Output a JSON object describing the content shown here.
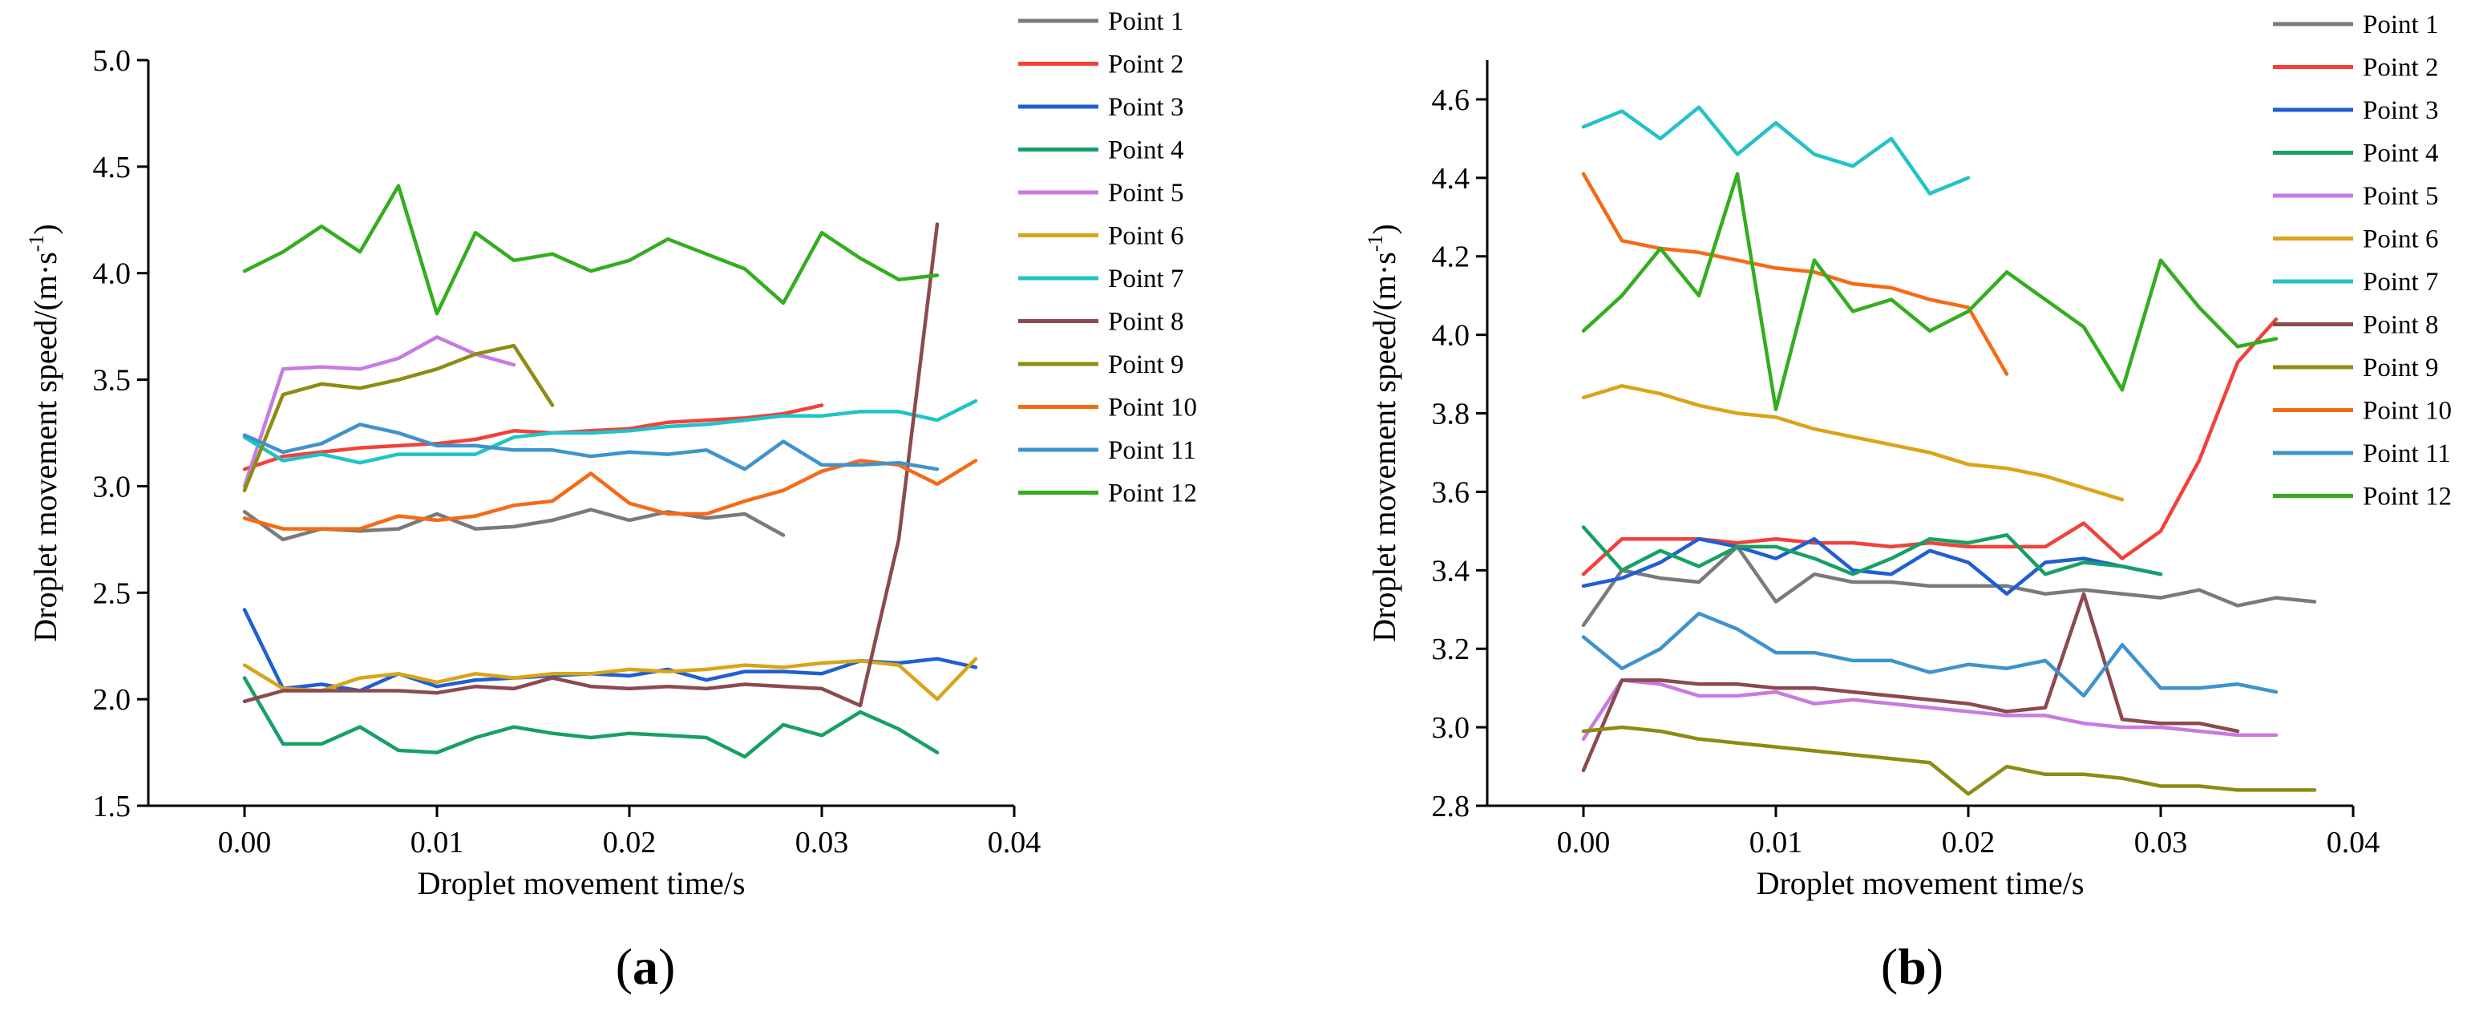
{
  "chart_data": [
    {
      "panel_label": "(a)",
      "type": "line",
      "xlabel": "Droplet movement time/s",
      "ylabel_main": "Droplet movement speed/(m·s",
      "ylabel_sup": "-1",
      "ylabel_close": ")",
      "xlim": [
        -0.005,
        0.04
      ],
      "ylim": [
        1.5,
        5.0
      ],
      "xticks": [
        "0.00",
        "0.01",
        "0.02",
        "0.03",
        "0.04"
      ],
      "yticks": [
        "1.5",
        "2.0",
        "2.5",
        "3.0",
        "3.5",
        "4.0",
        "4.5",
        "5.0"
      ],
      "series": [
        {
          "name": "Point 1",
          "color": "#7a7a7a",
          "x": [
            0,
            0.002,
            0.004,
            0.006,
            0.008,
            0.01,
            0.012,
            0.014,
            0.016,
            0.018,
            0.02,
            0.022,
            0.024,
            0.026,
            0.028
          ],
          "y": [
            2.88,
            2.75,
            2.8,
            2.79,
            2.8,
            2.87,
            2.8,
            2.81,
            2.84,
            2.89,
            2.84,
            2.88,
            2.85,
            2.87,
            2.77
          ]
        },
        {
          "name": "Point 2",
          "color": "#f0423a",
          "x": [
            0,
            0.002,
            0.004,
            0.006,
            0.008,
            0.01,
            0.012,
            0.014,
            0.016,
            0.018,
            0.02,
            0.022,
            0.024,
            0.026,
            0.028,
            0.03
          ],
          "y": [
            3.08,
            3.14,
            3.16,
            3.18,
            3.19,
            3.2,
            3.22,
            3.26,
            3.25,
            3.26,
            3.27,
            3.3,
            3.31,
            3.32,
            3.34,
            3.38
          ]
        },
        {
          "name": "Point 3",
          "color": "#1f5fd1",
          "x": [
            0,
            0.002,
            0.004,
            0.006,
            0.008,
            0.01,
            0.012,
            0.014,
            0.016,
            0.018,
            0.02,
            0.022,
            0.024,
            0.026,
            0.028,
            0.03,
            0.032,
            0.034,
            0.036,
            0.038
          ],
          "y": [
            2.42,
            2.05,
            2.07,
            2.04,
            2.12,
            2.06,
            2.09,
            2.1,
            2.11,
            2.12,
            2.11,
            2.14,
            2.09,
            2.13,
            2.13,
            2.12,
            2.18,
            2.17,
            2.19,
            2.15
          ]
        },
        {
          "name": "Point 4",
          "color": "#16a066",
          "x": [
            0,
            0.002,
            0.004,
            0.006,
            0.008,
            0.01,
            0.012,
            0.014,
            0.016,
            0.018,
            0.02,
            0.022,
            0.024,
            0.026,
            0.028,
            0.03,
            0.032,
            0.034,
            0.036
          ],
          "y": [
            2.1,
            1.79,
            1.79,
            1.87,
            1.76,
            1.75,
            1.82,
            1.87,
            1.84,
            1.82,
            1.84,
            1.83,
            1.82,
            1.73,
            1.88,
            1.83,
            1.94,
            1.86,
            1.75
          ]
        },
        {
          "name": "Point 5",
          "color": "#c77be0",
          "x": [
            0,
            0.002,
            0.004,
            0.006,
            0.008,
            0.01,
            0.012,
            0.014
          ],
          "y": [
            3.0,
            3.55,
            3.56,
            3.55,
            3.6,
            3.7,
            3.62,
            3.57
          ]
        },
        {
          "name": "Point 6",
          "color": "#d9a418",
          "x": [
            0,
            0.002,
            0.004,
            0.006,
            0.008,
            0.01,
            0.012,
            0.014,
            0.016,
            0.018,
            0.02,
            0.022,
            0.024,
            0.026,
            0.028,
            0.03,
            0.032,
            0.034,
            0.036,
            0.038
          ],
          "y": [
            2.16,
            2.05,
            2.04,
            2.1,
            2.12,
            2.08,
            2.12,
            2.1,
            2.12,
            2.12,
            2.14,
            2.13,
            2.14,
            2.16,
            2.15,
            2.17,
            2.18,
            2.16,
            2.0,
            2.19
          ]
        },
        {
          "name": "Point 7",
          "color": "#20c3c8",
          "x": [
            0,
            0.002,
            0.004,
            0.006,
            0.008,
            0.01,
            0.012,
            0.014,
            0.016,
            0.018,
            0.02,
            0.022,
            0.024,
            0.026,
            0.028,
            0.03,
            0.032,
            0.034,
            0.036,
            0.038
          ],
          "y": [
            3.23,
            3.12,
            3.15,
            3.11,
            3.15,
            3.15,
            3.15,
            3.23,
            3.25,
            3.25,
            3.26,
            3.28,
            3.29,
            3.31,
            3.33,
            3.33,
            3.35,
            3.35,
            3.31,
            3.4
          ]
        },
        {
          "name": "Point 8",
          "color": "#8b4a4f",
          "x": [
            0,
            0.002,
            0.004,
            0.006,
            0.008,
            0.01,
            0.012,
            0.014,
            0.016,
            0.018,
            0.02,
            0.022,
            0.024,
            0.026,
            0.028,
            0.03,
            0.032,
            0.034,
            0.036
          ],
          "y": [
            1.99,
            2.04,
            2.04,
            2.04,
            2.04,
            2.03,
            2.06,
            2.05,
            2.1,
            2.06,
            2.05,
            2.06,
            2.05,
            2.07,
            2.06,
            2.05,
            1.97,
            2.75,
            4.23
          ]
        },
        {
          "name": "Point 9",
          "color": "#8c8c12",
          "x": [
            0,
            0.002,
            0.004,
            0.006,
            0.008,
            0.01,
            0.012,
            0.014,
            0.016
          ],
          "y": [
            2.98,
            3.43,
            3.48,
            3.46,
            3.5,
            3.55,
            3.62,
            3.66,
            3.38
          ]
        },
        {
          "name": "Point 10",
          "color": "#f56a16",
          "x": [
            0,
            0.002,
            0.004,
            0.006,
            0.008,
            0.01,
            0.012,
            0.014,
            0.016,
            0.018,
            0.02,
            0.022,
            0.024,
            0.026,
            0.028,
            0.03,
            0.032,
            0.034,
            0.036,
            0.038
          ],
          "y": [
            2.85,
            2.8,
            2.8,
            2.8,
            2.86,
            2.84,
            2.86,
            2.91,
            2.93,
            3.06,
            2.92,
            2.87,
            2.87,
            2.93,
            2.98,
            3.07,
            3.12,
            3.1,
            3.01,
            3.12
          ]
        },
        {
          "name": "Point 11",
          "color": "#3f93cc",
          "x": [
            0,
            0.002,
            0.004,
            0.006,
            0.008,
            0.01,
            0.012,
            0.014,
            0.016,
            0.018,
            0.02,
            0.022,
            0.024,
            0.026,
            0.028,
            0.03,
            0.032,
            0.034,
            0.036
          ],
          "y": [
            3.24,
            3.16,
            3.2,
            3.29,
            3.25,
            3.19,
            3.19,
            3.17,
            3.17,
            3.14,
            3.16,
            3.15,
            3.17,
            3.08,
            3.21,
            3.1,
            3.1,
            3.11,
            3.08
          ]
        },
        {
          "name": "Point 12",
          "color": "#34ad1e",
          "x": [
            0,
            0.002,
            0.004,
            0.006,
            0.008,
            0.01,
            0.012,
            0.014,
            0.016,
            0.018,
            0.02,
            0.022,
            0.024,
            0.026,
            0.028,
            0.03,
            0.032,
            0.034,
            0.036
          ],
          "y": [
            4.01,
            4.1,
            4.22,
            4.1,
            4.41,
            3.81,
            4.19,
            4.06,
            4.09,
            4.01,
            4.06,
            4.16,
            4.09,
            4.02,
            3.86,
            4.19,
            4.07,
            3.97,
            3.99
          ]
        }
      ]
    },
    {
      "panel_label": "(b)",
      "type": "line",
      "xlabel": "Droplet movement time/s",
      "ylabel_main": "Droplet movement speed/(m·s",
      "ylabel_sup": "-1",
      "ylabel_close": ")",
      "xlim": [
        -0.005,
        0.04
      ],
      "ylim": [
        2.8,
        4.7
      ],
      "xticks": [
        "0.00",
        "0.01",
        "0.02",
        "0.03",
        "0.04"
      ],
      "yticks": [
        "2.8",
        "3.0",
        "3.2",
        "3.4",
        "3.6",
        "3.8",
        "4.0",
        "4.2",
        "4.4",
        "4.6"
      ],
      "series": [
        {
          "name": "Point 1",
          "color": "#7a7a7a",
          "x": [
            0,
            0.002,
            0.004,
            0.006,
            0.008,
            0.01,
            0.012,
            0.014,
            0.016,
            0.018,
            0.02,
            0.022,
            0.024,
            0.026,
            0.028,
            0.03,
            0.032,
            0.034,
            0.036,
            0.038
          ],
          "y": [
            3.26,
            3.4,
            3.38,
            3.37,
            3.46,
            3.32,
            3.39,
            3.37,
            3.37,
            3.36,
            3.36,
            3.36,
            3.34,
            3.35,
            3.34,
            3.33,
            3.35,
            3.31,
            3.33,
            3.32
          ]
        },
        {
          "name": "Point 2",
          "color": "#f0423a",
          "x": [
            0,
            0.002,
            0.004,
            0.006,
            0.008,
            0.01,
            0.012,
            0.014,
            0.016,
            0.018,
            0.02,
            0.022,
            0.024,
            0.026,
            0.028,
            0.03,
            0.032,
            0.034,
            0.036
          ],
          "y": [
            3.39,
            3.48,
            3.48,
            3.48,
            3.47,
            3.48,
            3.47,
            3.47,
            3.46,
            3.47,
            3.46,
            3.46,
            3.46,
            3.52,
            3.43,
            3.5,
            3.68,
            3.93,
            4.04
          ]
        },
        {
          "name": "Point 3",
          "color": "#1f5fd1",
          "x": [
            0,
            0.002,
            0.004,
            0.006,
            0.008,
            0.01,
            0.012,
            0.014,
            0.016,
            0.018,
            0.02,
            0.022,
            0.024,
            0.026,
            0.028,
            0.03
          ],
          "y": [
            3.36,
            3.38,
            3.42,
            3.48,
            3.46,
            3.43,
            3.48,
            3.4,
            3.39,
            3.45,
            3.42,
            3.34,
            3.42,
            3.43,
            3.41,
            3.39
          ]
        },
        {
          "name": "Point 4",
          "color": "#16a066",
          "x": [
            0,
            0.002,
            0.004,
            0.006,
            0.008,
            0.01,
            0.012,
            0.014,
            0.016,
            0.018,
            0.02,
            0.022,
            0.024,
            0.026,
            0.028,
            0.03
          ],
          "y": [
            3.51,
            3.4,
            3.45,
            3.41,
            3.46,
            3.46,
            3.43,
            3.39,
            3.43,
            3.48,
            3.47,
            3.49,
            3.39,
            3.42,
            3.41,
            3.39
          ]
        },
        {
          "name": "Point 5",
          "color": "#c77be0",
          "x": [
            0,
            0.002,
            0.004,
            0.006,
            0.008,
            0.01,
            0.012,
            0.014,
            0.016,
            0.018,
            0.02,
            0.022,
            0.024,
            0.026,
            0.028,
            0.03,
            0.032,
            0.034,
            0.036
          ],
          "y": [
            2.97,
            3.12,
            3.11,
            3.08,
            3.08,
            3.09,
            3.06,
            3.07,
            3.06,
            3.05,
            3.04,
            3.03,
            3.03,
            3.01,
            3.0,
            3.0,
            2.99,
            2.98,
            2.98
          ]
        },
        {
          "name": "Point 6",
          "color": "#d9a418",
          "x": [
            0,
            0.002,
            0.004,
            0.006,
            0.008,
            0.01,
            0.012,
            0.014,
            0.016,
            0.018,
            0.02,
            0.022,
            0.024,
            0.026,
            0.028
          ],
          "y": [
            3.84,
            3.87,
            3.85,
            3.82,
            3.8,
            3.79,
            3.76,
            3.74,
            3.72,
            3.7,
            3.67,
            3.66,
            3.64,
            3.61,
            3.58
          ]
        },
        {
          "name": "Point 7",
          "color": "#20c3c8",
          "x": [
            0,
            0.002,
            0.004,
            0.006,
            0.008,
            0.01,
            0.012,
            0.014,
            0.016,
            0.018,
            0.02
          ],
          "y": [
            4.53,
            4.57,
            4.5,
            4.58,
            4.46,
            4.54,
            4.46,
            4.43,
            4.5,
            4.36,
            4.4
          ]
        },
        {
          "name": "Point 8",
          "color": "#8b4a4f",
          "x": [
            0,
            0.002,
            0.004,
            0.006,
            0.008,
            0.01,
            0.012,
            0.014,
            0.016,
            0.018,
            0.02,
            0.022,
            0.024,
            0.026,
            0.028,
            0.03,
            0.032,
            0.034
          ],
          "y": [
            2.89,
            3.12,
            3.12,
            3.11,
            3.11,
            3.1,
            3.1,
            3.09,
            3.08,
            3.07,
            3.06,
            3.04,
            3.05,
            3.34,
            3.02,
            3.01,
            3.01,
            2.99
          ]
        },
        {
          "name": "Point 9",
          "color": "#8c8c12",
          "x": [
            0,
            0.002,
            0.004,
            0.006,
            0.008,
            0.01,
            0.012,
            0.014,
            0.016,
            0.018,
            0.02,
            0.022,
            0.024,
            0.026,
            0.028,
            0.03,
            0.032,
            0.034,
            0.036,
            0.038
          ],
          "y": [
            2.99,
            3.0,
            2.99,
            2.97,
            2.96,
            2.95,
            2.94,
            2.93,
            2.92,
            2.91,
            2.83,
            2.9,
            2.88,
            2.88,
            2.87,
            2.85,
            2.85,
            2.84,
            2.84,
            2.84
          ]
        },
        {
          "name": "Point 10",
          "color": "#f56a16",
          "x": [
            0,
            0.002,
            0.004,
            0.006,
            0.008,
            0.01,
            0.012,
            0.014,
            0.016,
            0.018,
            0.02,
            0.022
          ],
          "y": [
            4.41,
            4.24,
            4.22,
            4.21,
            4.19,
            4.17,
            4.16,
            4.13,
            4.12,
            4.09,
            4.07,
            3.9
          ]
        },
        {
          "name": "Point 11",
          "color": "#3f93cc",
          "x": [
            0,
            0.002,
            0.004,
            0.006,
            0.008,
            0.01,
            0.012,
            0.014,
            0.016,
            0.018,
            0.02,
            0.022,
            0.024,
            0.026,
            0.028,
            0.03,
            0.032,
            0.034,
            0.036
          ],
          "y": [
            3.23,
            3.15,
            3.2,
            3.29,
            3.25,
            3.19,
            3.19,
            3.17,
            3.17,
            3.14,
            3.16,
            3.15,
            3.17,
            3.08,
            3.21,
            3.1,
            3.1,
            3.11,
            3.09
          ]
        },
        {
          "name": "Point 12",
          "color": "#34ad1e",
          "x": [
            0,
            0.002,
            0.004,
            0.006,
            0.008,
            0.01,
            0.012,
            0.014,
            0.016,
            0.018,
            0.02,
            0.022,
            0.024,
            0.026,
            0.028,
            0.03,
            0.032,
            0.034,
            0.036
          ],
          "y": [
            4.01,
            4.1,
            4.22,
            4.1,
            4.41,
            3.81,
            4.19,
            4.06,
            4.09,
            4.01,
            4.06,
            4.16,
            4.09,
            4.02,
            3.86,
            4.19,
            4.07,
            3.97,
            3.99
          ]
        }
      ]
    }
  ]
}
